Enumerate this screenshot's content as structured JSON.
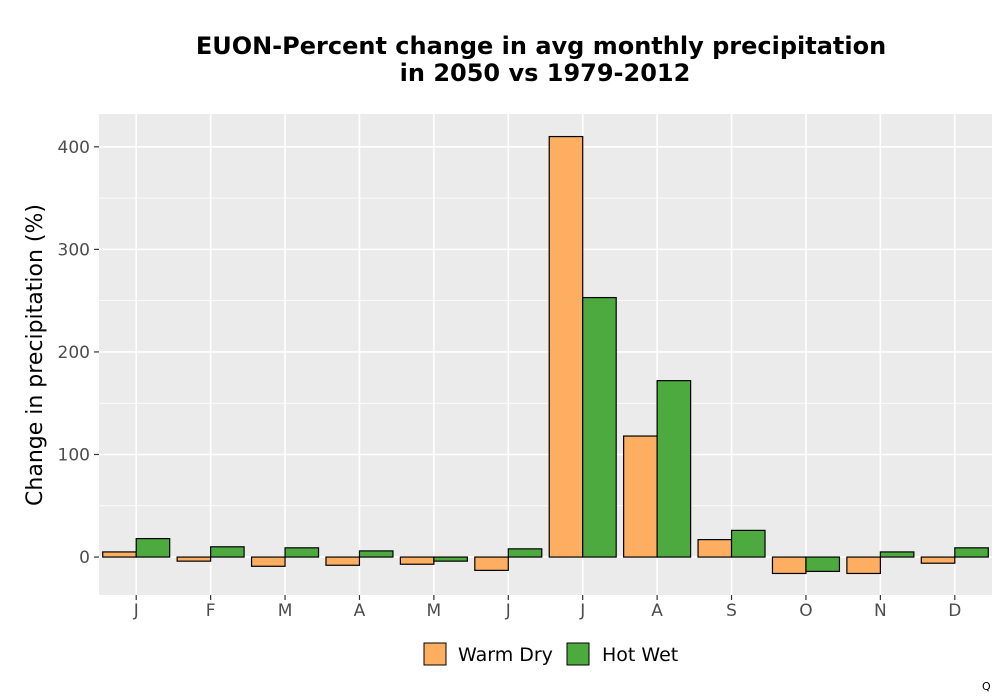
{
  "chart_data": {
    "type": "bar",
    "title_lines": [
      "EUON-Percent change in avg monthly precipitation",
      "in 2050 vs 1979-2012"
    ],
    "xlabel": "",
    "ylabel": "Change in precipitation (%)",
    "categories": [
      "J",
      "F",
      "M",
      "A",
      "M",
      "J",
      "J",
      "A",
      "S",
      "O",
      "N",
      "D"
    ],
    "series": [
      {
        "name": "Warm Dry",
        "color": "#fdae61",
        "values": [
          5,
          -4,
          -9,
          -8,
          -7,
          -13,
          410,
          118,
          17,
          -16,
          -16,
          -6
        ]
      },
      {
        "name": "Hot Wet",
        "color": "#4daa3f",
        "values": [
          18,
          10,
          9,
          6,
          -4,
          8,
          253,
          172,
          26,
          -14,
          5,
          9
        ]
      }
    ],
    "ylim": [
      -37,
      432
    ],
    "yticks": [
      0,
      100,
      200,
      300,
      400
    ],
    "grid": true,
    "legend_position": "bottom"
  },
  "corner_mark": "Q"
}
